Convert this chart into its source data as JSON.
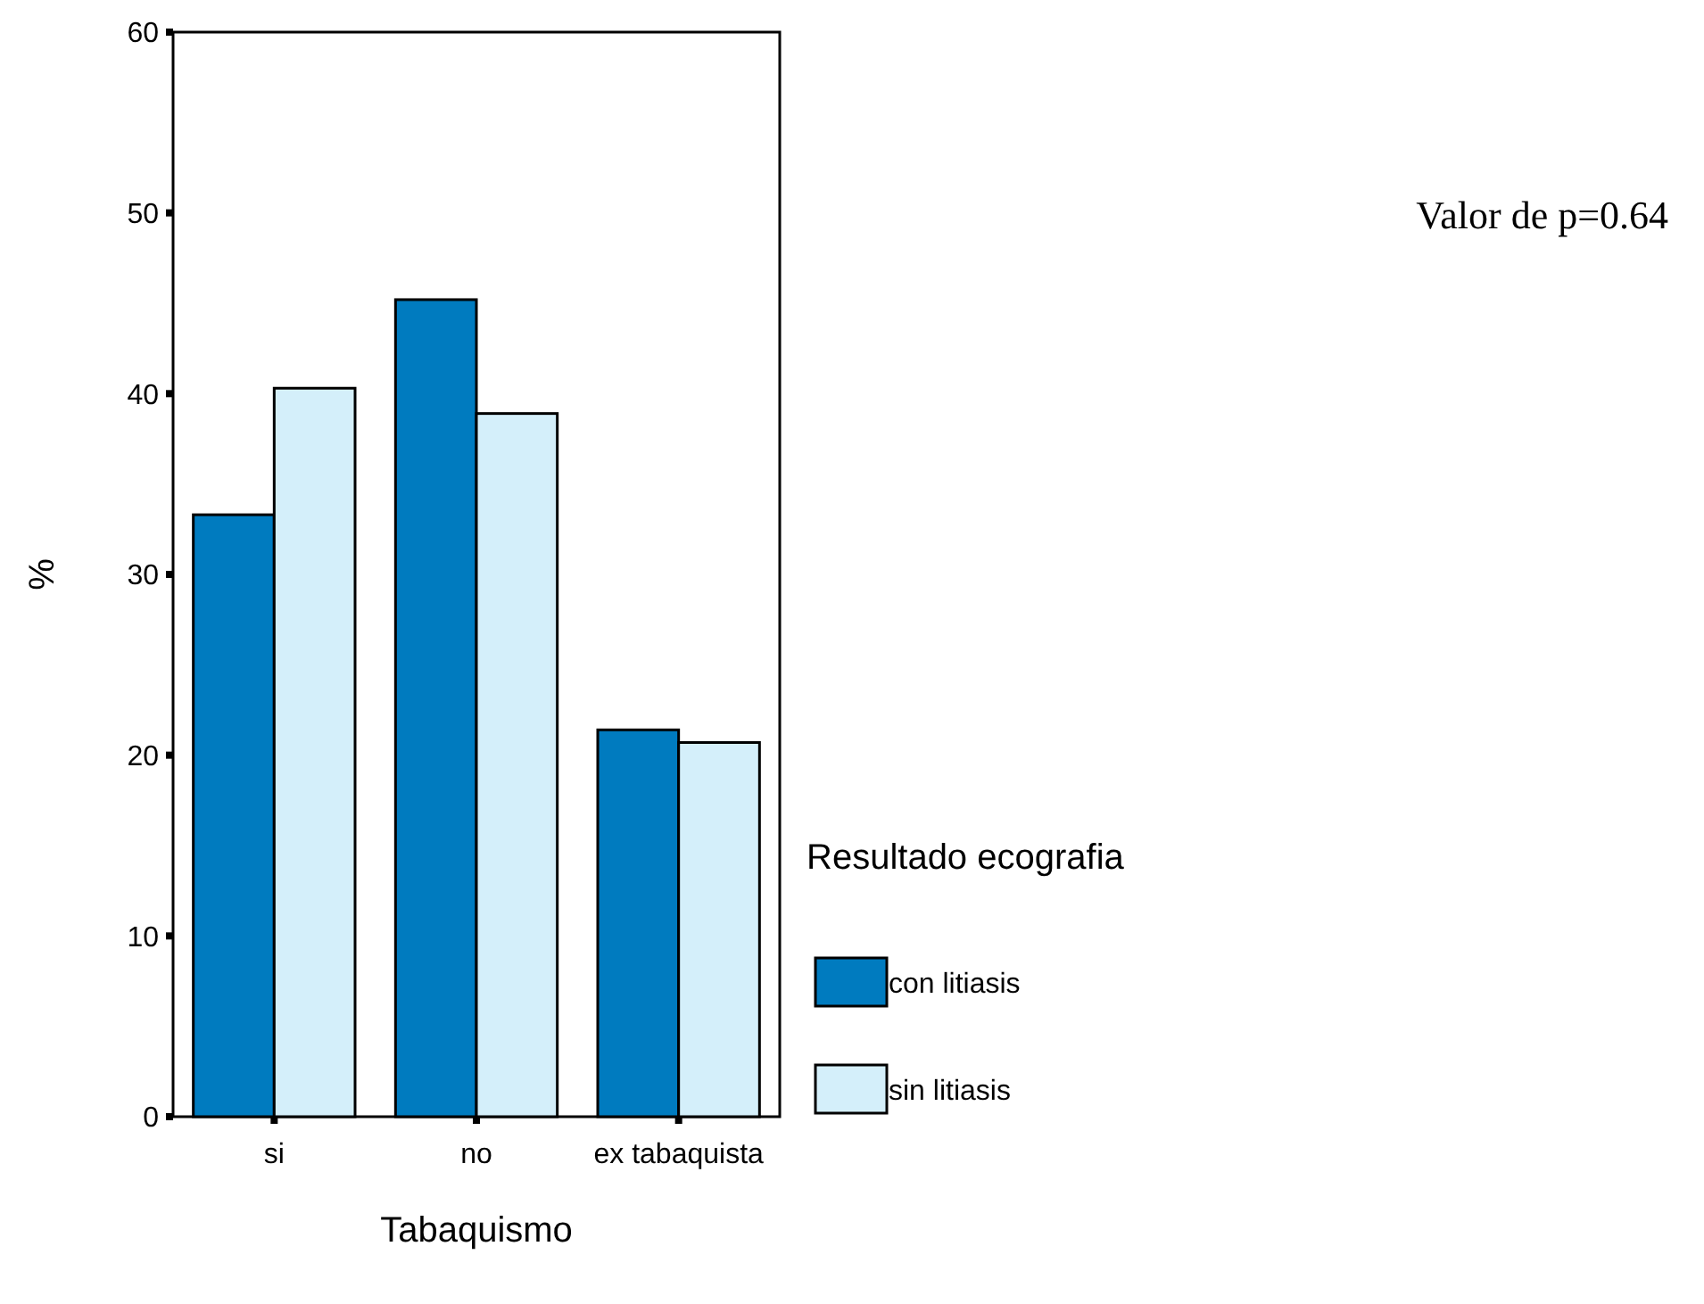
{
  "chart_data": {
    "type": "bar",
    "xlabel": "Tabaquismo",
    "ylabel": "%",
    "legend_title": "Resultado ecografia",
    "legend": "bottom right",
    "categories": [
      "si",
      "no",
      "ex tabaquista"
    ],
    "series": [
      {
        "name": "con litiasis",
        "color": "#007bbf",
        "values": [
          33.3,
          45.2,
          21.4
        ]
      },
      {
        "name": "sin litiasis",
        "color": "#d4effa",
        "values": [
          40.3,
          38.9,
          20.7
        ]
      }
    ],
    "ylim": [
      0,
      60
    ],
    "yticks": [
      0,
      10,
      20,
      30,
      40,
      50,
      60
    ],
    "grid": false,
    "annotations": [
      "Valor de p=0.64"
    ]
  }
}
